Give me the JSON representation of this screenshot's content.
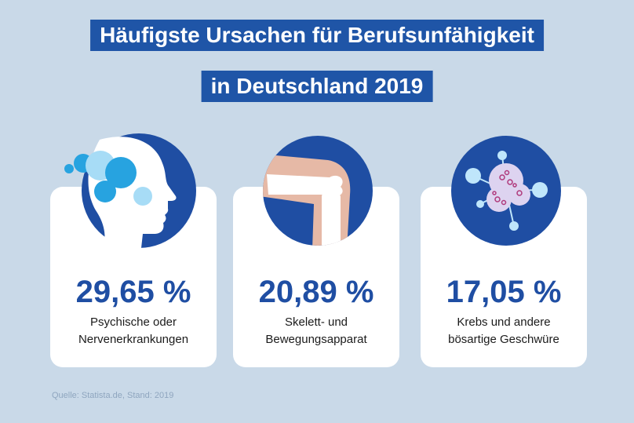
{
  "title": {
    "line1": "Häufigste Ursachen für Berufsunfähigkeit",
    "line2": "in Deutschland 2019"
  },
  "cards": [
    {
      "value": "29,65 %",
      "label_line1": "Psychische oder",
      "label_line2": "Nervenerkrankungen",
      "icon": "head-brain-icon"
    },
    {
      "value": "20,89 %",
      "label_line1": "Skelett- und",
      "label_line2": "Bewegungsapparat",
      "icon": "knee-bone-icon"
    },
    {
      "value": "17,05 %",
      "label_line1": "Krebs und andere",
      "label_line2": "bösartige Geschwüre",
      "icon": "cancer-cell-icon"
    }
  ],
  "source": "Quelle: Statista.de, Stand: 2019",
  "colors": {
    "background": "#c9d9e8",
    "brand_blue": "#1f55a7",
    "percent_blue": "#1f4ea3",
    "card": "#ffffff"
  }
}
